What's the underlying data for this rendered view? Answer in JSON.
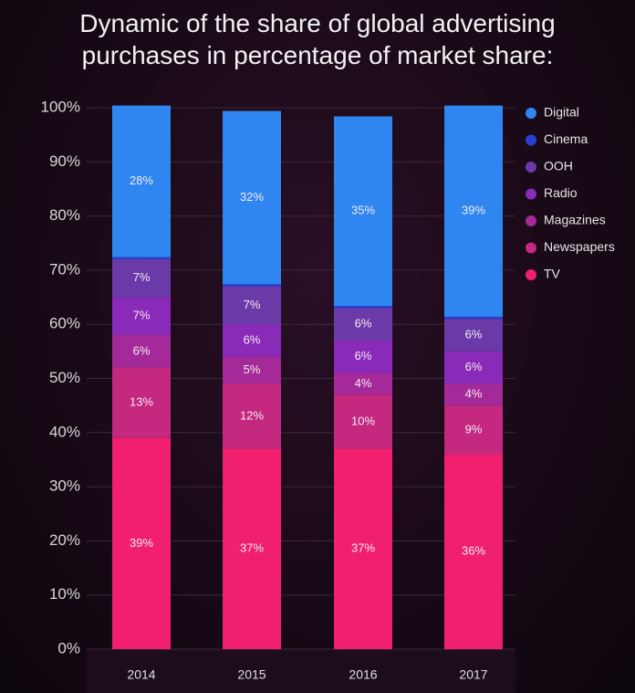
{
  "chart_data": {
    "type": "stacked_bar",
    "title": "Dynamic of the share of global advertising purchases in percentage of market share:",
    "categories": [
      "2014",
      "2015",
      "2016",
      "2017"
    ],
    "series": [
      {
        "name": "TV",
        "color": "#f0206e",
        "values": [
          39,
          37,
          37,
          36
        ],
        "value_labels": [
          "39%",
          "37%",
          "37%",
          "36%"
        ]
      },
      {
        "name": "Newspapers",
        "color": "#c4287f",
        "values": [
          13,
          12,
          10,
          9
        ],
        "value_labels": [
          "13%",
          "12%",
          "10%",
          "9%"
        ]
      },
      {
        "name": "Magazines",
        "color": "#a52a99",
        "values": [
          6,
          5,
          4,
          4
        ],
        "value_labels": [
          "6%",
          "5%",
          "4%",
          "4%"
        ]
      },
      {
        "name": "Radio",
        "color": "#8a2ab8",
        "values": [
          7,
          6,
          6,
          6
        ],
        "value_labels": [
          "7%",
          "6%",
          "6%",
          "6%"
        ]
      },
      {
        "name": "OOH",
        "color": "#6a3aa8",
        "values": [
          7,
          7,
          6,
          6
        ],
        "value_labels": [
          "7%",
          "7%",
          "6%",
          "6%"
        ]
      },
      {
        "name": "Cinema",
        "color": "#2a3fd0",
        "values": [
          0.4,
          0.4,
          0.4,
          0.4
        ]
      },
      {
        "name": "Digital",
        "color": "#2f86f0",
        "values": [
          28,
          32,
          35,
          39
        ],
        "value_labels": [
          "28%",
          "32%",
          "35%",
          "39%"
        ]
      }
    ],
    "ylim": [
      0,
      100
    ],
    "yticks": [
      {
        "value": 0,
        "label": "0%"
      },
      {
        "value": 10,
        "label": "10%"
      },
      {
        "value": 20,
        "label": "20%"
      },
      {
        "value": 30,
        "label": "30%"
      },
      {
        "value": 40,
        "label": "40%"
      },
      {
        "value": 50,
        "label": "50%"
      },
      {
        "value": 60,
        "label": "60%"
      },
      {
        "value": 70,
        "label": "70%"
      },
      {
        "value": 80,
        "label": "80%"
      },
      {
        "value": 90,
        "label": "90%"
      },
      {
        "value": 100,
        "label": "100%"
      }
    ],
    "grid": true,
    "legend": "right"
  }
}
